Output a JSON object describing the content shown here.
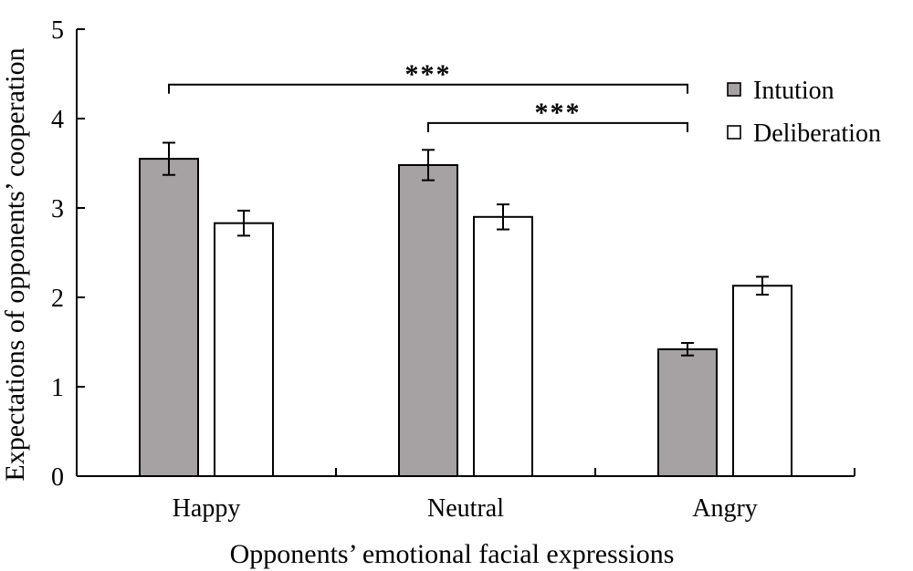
{
  "chart_data": {
    "type": "bar",
    "title": "",
    "xlabel": "Opponents’ emotional facial expressions",
    "ylabel": "Expectations of opponents’ cooperation",
    "categories": [
      "Happy",
      "Neutral",
      "Angry"
    ],
    "ylim": [
      0,
      5
    ],
    "yticks": [
      "0",
      "1",
      "2",
      "3",
      "4",
      "5"
    ],
    "grid": false,
    "legend_position": "top-right",
    "series": [
      {
        "name": "Intution",
        "color": "#a6a1a3",
        "values": [
          3.55,
          3.48,
          1.42
        ],
        "errors": [
          0.18,
          0.17,
          0.07
        ]
      },
      {
        "name": "Deliberation",
        "color": "#ffffff",
        "values": [
          2.83,
          2.9,
          2.13
        ],
        "errors": [
          0.14,
          0.14,
          0.1
        ]
      }
    ],
    "annotations": [
      {
        "text": "***",
        "from_category": "Happy",
        "to_category": "Angry",
        "y": 4.38,
        "label_y": 4.52
      },
      {
        "text": "***",
        "from_category": "Neutral",
        "to_category": "Angry",
        "y": 3.95,
        "label_y": 4.09
      }
    ]
  }
}
